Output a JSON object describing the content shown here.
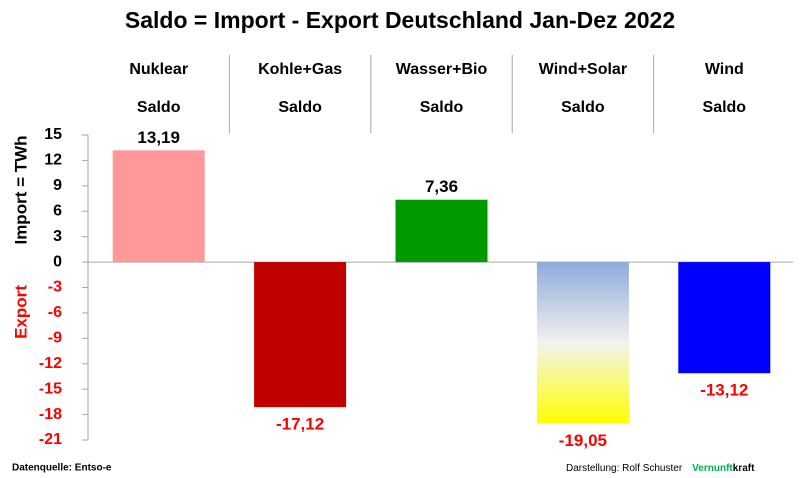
{
  "chart_data": {
    "type": "bar",
    "title": "Saldo = Import - Export Deutschland Jan-Dez 2022",
    "categories": [
      "Nuklear",
      "Kohle+Gas",
      "Wasser+Bio",
      "Wind+Solar",
      "Wind"
    ],
    "category_sublabels": [
      "Saldo",
      "Saldo",
      "Saldo",
      "Saldo",
      "Saldo"
    ],
    "values": [
      13.19,
      -17.12,
      7.36,
      -19.05,
      -13.12
    ],
    "value_labels": [
      "13,19",
      "-17,12",
      "7,36",
      "-19,05",
      "-13,12"
    ],
    "colors": [
      "#ff9999",
      "#c00000",
      "#009900",
      [
        "#8faadc",
        "#f2f2ee",
        "#ffff00"
      ],
      "#0000ff"
    ],
    "y_label_positive": "Import = TWh",
    "y_label_negative": "Export",
    "negative_color": "#ff0000",
    "ylim": [
      -21,
      15
    ],
    "yticks": [
      15,
      12,
      9,
      6,
      3,
      0,
      -3,
      -6,
      -9,
      -12,
      -15,
      -18,
      -21
    ],
    "footer": {
      "source": "Datenquelle: Entso-e",
      "author": "Darstellung:  Rolf Schuster",
      "brand_green": "Vernunft",
      "brand_black": "kraft"
    }
  }
}
